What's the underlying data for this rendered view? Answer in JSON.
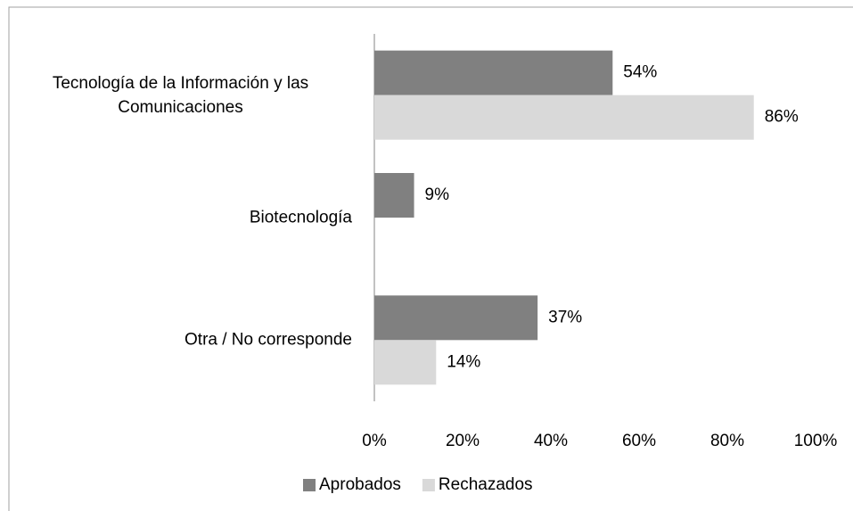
{
  "chart_data": {
    "type": "hbar",
    "categories": [
      "Tecnología de la Información y las Comunicaciones",
      "Biotecnología",
      "Otra / No corresponde"
    ],
    "series": [
      {
        "name": "Aprobados",
        "color": "#808080",
        "values": [
          54,
          9,
          37
        ],
        "value_labels": [
          "54%",
          "9%",
          "37%"
        ]
      },
      {
        "name": "Rechazados",
        "color": "#d9d9d9",
        "values": [
          86,
          null,
          14
        ],
        "value_labels": [
          "86%",
          null,
          "14%"
        ]
      }
    ],
    "xlim": [
      0,
      100
    ],
    "xticks": [
      {
        "value": 0,
        "label": "0%"
      },
      {
        "value": 20,
        "label": "20%"
      },
      {
        "value": 40,
        "label": "40%"
      },
      {
        "value": 60,
        "label": "60%"
      },
      {
        "value": 80,
        "label": "80%"
      },
      {
        "value": 100,
        "label": "100%"
      }
    ],
    "legend": "bottom"
  }
}
